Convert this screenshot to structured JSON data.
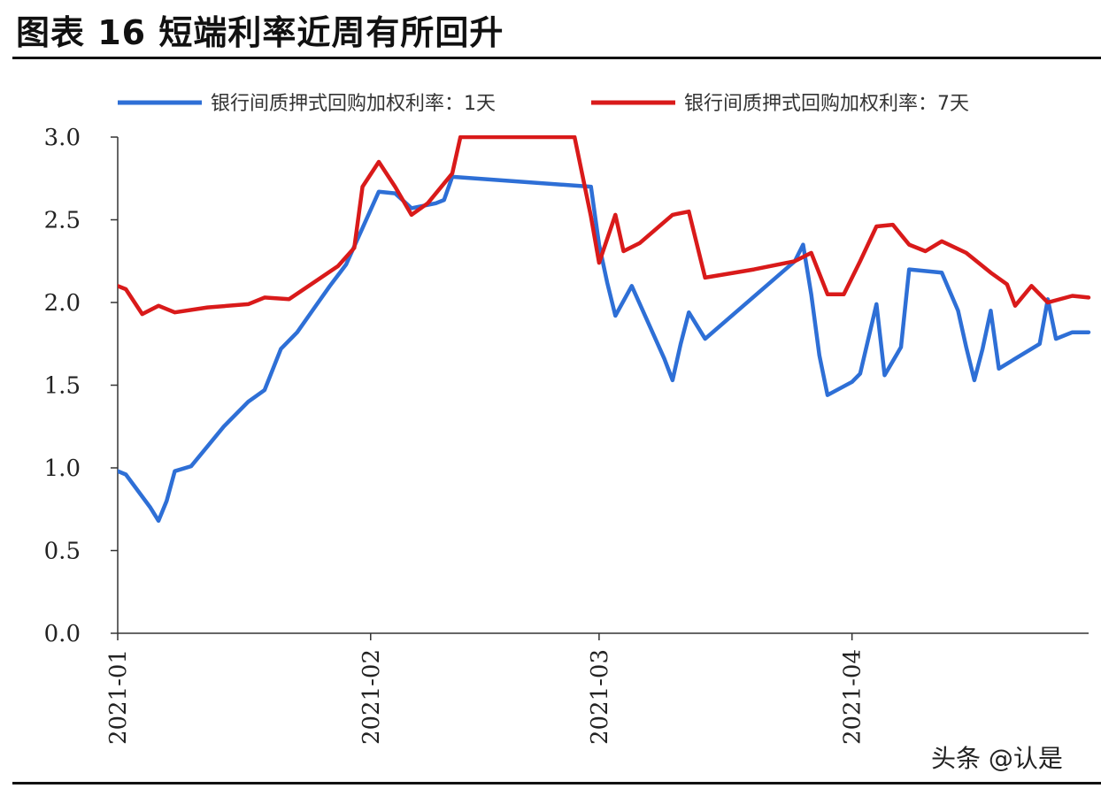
{
  "figure": {
    "title": "图表 16  短端利率近周有所回升",
    "watermark": "头条 @认是"
  },
  "chart_data": {
    "type": "line",
    "title": "",
    "xlabel": "",
    "ylabel": "",
    "ylim": [
      0,
      3.0
    ],
    "yticks": [
      "0.0",
      "0.5",
      "1.0",
      "1.5",
      "2.0",
      "2.5",
      "3.0"
    ],
    "xlim": [
      "2021-01-01",
      "2021-04-30"
    ],
    "xticks": [
      "2021-01",
      "2021-02",
      "2021-03",
      "2021-04"
    ],
    "legend_position": "top",
    "grid": false,
    "series": [
      {
        "name": "银行间质押式回购加权利率：1天",
        "color": "#2e6fd6",
        "points": [
          [
            "2021-01-01",
            0.98
          ],
          [
            "2021-01-02",
            0.96
          ],
          [
            "2021-01-05",
            0.76
          ],
          [
            "2021-01-06",
            0.68
          ],
          [
            "2021-01-07",
            0.8
          ],
          [
            "2021-01-08",
            0.98
          ],
          [
            "2021-01-10",
            1.01
          ],
          [
            "2021-01-14",
            1.25
          ],
          [
            "2021-01-17",
            1.4
          ],
          [
            "2021-01-19",
            1.47
          ],
          [
            "2021-01-21",
            1.72
          ],
          [
            "2021-01-23",
            1.82
          ],
          [
            "2021-01-25",
            1.96
          ],
          [
            "2021-01-27",
            2.1
          ],
          [
            "2021-01-29",
            2.23
          ],
          [
            "2021-01-31",
            2.45
          ],
          [
            "2021-02-02",
            2.67
          ],
          [
            "2021-02-04",
            2.66
          ],
          [
            "2021-02-06",
            2.57
          ],
          [
            "2021-02-09",
            2.6
          ],
          [
            "2021-02-10",
            2.62
          ],
          [
            "2021-02-11",
            2.76
          ],
          [
            "2021-02-28",
            2.7
          ],
          [
            "2021-03-01",
            2.35
          ],
          [
            "2021-03-02",
            2.12
          ],
          [
            "2021-03-03",
            1.92
          ],
          [
            "2021-03-05",
            2.1
          ],
          [
            "2021-03-07",
            1.88
          ],
          [
            "2021-03-09",
            1.66
          ],
          [
            "2021-03-10",
            1.53
          ],
          [
            "2021-03-11",
            1.75
          ],
          [
            "2021-03-12",
            1.94
          ],
          [
            "2021-03-14",
            1.78
          ],
          [
            "2021-03-25",
            2.25
          ],
          [
            "2021-03-26",
            2.35
          ],
          [
            "2021-03-27",
            2.05
          ],
          [
            "2021-03-28",
            1.68
          ],
          [
            "2021-03-29",
            1.44
          ],
          [
            "2021-04-01",
            1.52
          ],
          [
            "2021-04-02",
            1.57
          ],
          [
            "2021-04-04",
            1.99
          ],
          [
            "2021-04-05",
            1.56
          ],
          [
            "2021-04-07",
            1.73
          ],
          [
            "2021-04-08",
            2.2
          ],
          [
            "2021-04-12",
            2.18
          ],
          [
            "2021-04-14",
            1.95
          ],
          [
            "2021-04-15",
            1.73
          ],
          [
            "2021-04-16",
            1.53
          ],
          [
            "2021-04-17",
            1.72
          ],
          [
            "2021-04-18",
            1.95
          ],
          [
            "2021-04-19",
            1.6
          ],
          [
            "2021-04-24",
            1.75
          ],
          [
            "2021-04-25",
            2.02
          ],
          [
            "2021-04-26",
            1.78
          ],
          [
            "2021-04-28",
            1.82
          ],
          [
            "2021-04-30",
            1.82
          ]
        ]
      },
      {
        "name": "银行间质押式回购加权利率：7天",
        "color": "#d91a1a",
        "points": [
          [
            "2021-01-01",
            2.1
          ],
          [
            "2021-01-02",
            2.08
          ],
          [
            "2021-01-04",
            1.93
          ],
          [
            "2021-01-06",
            1.98
          ],
          [
            "2021-01-08",
            1.94
          ],
          [
            "2021-01-12",
            1.97
          ],
          [
            "2021-01-17",
            1.99
          ],
          [
            "2021-01-19",
            2.03
          ],
          [
            "2021-01-22",
            2.02
          ],
          [
            "2021-01-25",
            2.12
          ],
          [
            "2021-01-28",
            2.22
          ],
          [
            "2021-01-30",
            2.33
          ],
          [
            "2021-01-31",
            2.7
          ],
          [
            "2021-02-02",
            2.85
          ],
          [
            "2021-02-04",
            2.7
          ],
          [
            "2021-02-06",
            2.53
          ],
          [
            "2021-02-08",
            2.6
          ],
          [
            "2021-02-11",
            2.78
          ],
          [
            "2021-02-12",
            3.0
          ],
          [
            "2021-02-26",
            3.0
          ],
          [
            "2021-02-28",
            2.52
          ],
          [
            "2021-03-01",
            2.24
          ],
          [
            "2021-03-03",
            2.53
          ],
          [
            "2021-03-04",
            2.31
          ],
          [
            "2021-03-06",
            2.36
          ],
          [
            "2021-03-10",
            2.53
          ],
          [
            "2021-03-12",
            2.55
          ],
          [
            "2021-03-14",
            2.15
          ],
          [
            "2021-03-20",
            2.2
          ],
          [
            "2021-03-25",
            2.25
          ],
          [
            "2021-03-27",
            2.3
          ],
          [
            "2021-03-29",
            2.05
          ],
          [
            "2021-03-31",
            2.05
          ],
          [
            "2021-04-02",
            2.25
          ],
          [
            "2021-04-04",
            2.46
          ],
          [
            "2021-04-06",
            2.47
          ],
          [
            "2021-04-08",
            2.35
          ],
          [
            "2021-04-10",
            2.31
          ],
          [
            "2021-04-12",
            2.37
          ],
          [
            "2021-04-15",
            2.3
          ],
          [
            "2021-04-18",
            2.18
          ],
          [
            "2021-04-20",
            2.11
          ],
          [
            "2021-04-21",
            1.98
          ],
          [
            "2021-04-23",
            2.1
          ],
          [
            "2021-04-25",
            2.0
          ],
          [
            "2021-04-28",
            2.04
          ],
          [
            "2021-04-30",
            2.03
          ]
        ]
      }
    ]
  }
}
